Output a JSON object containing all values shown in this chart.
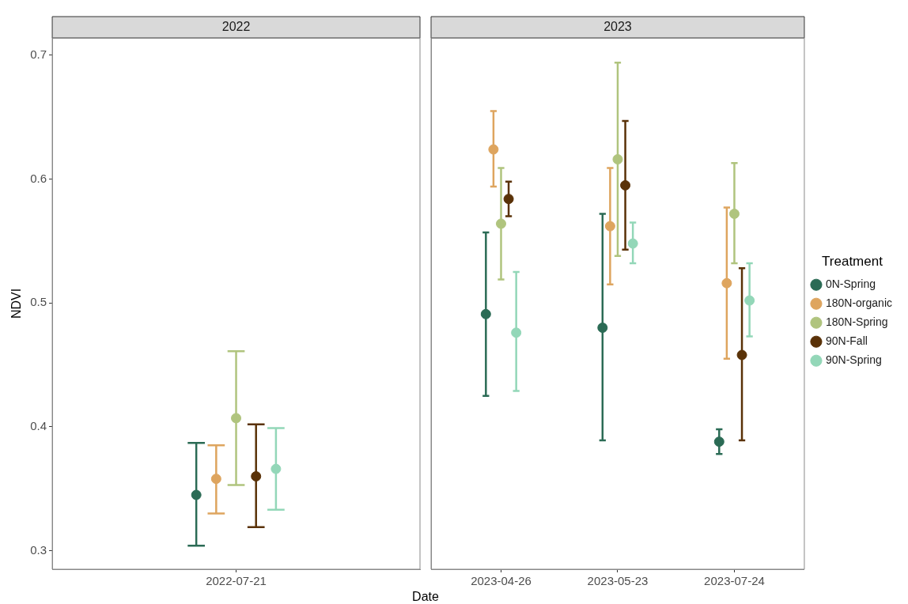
{
  "chart_data": [
    {
      "type": "scatter",
      "title": "2022",
      "ylabel": "NDVI",
      "categories": [
        "2022-07-21"
      ],
      "ylim": [
        0.285,
        0.714
      ],
      "yticks": [
        0.3,
        0.4,
        0.5,
        0.6,
        0.7
      ],
      "marker": "circle",
      "legend": false,
      "series": [
        {
          "color": "#2b6b55",
          "values": [
            0.345
          ],
          "errors": [
            [
              0.304,
              0.387
            ]
          ]
        },
        {
          "color": "#dea55f",
          "values": [
            0.358
          ],
          "errors": [
            [
              0.33,
              0.385
            ]
          ]
        },
        {
          "color": "#b0c47e",
          "values": [
            0.407
          ],
          "errors": [
            [
              0.353,
              0.461
            ]
          ]
        },
        {
          "color": "#5a3208",
          "values": [
            0.36
          ],
          "errors": [
            [
              0.319,
              0.402
            ]
          ]
        },
        {
          "color": "#93d7b8",
          "values": [
            0.366
          ],
          "errors": [
            [
              0.333,
              0.399
            ]
          ]
        }
      ]
    },
    {
      "type": "scatter",
      "title": "2023",
      "xlabel": "Date",
      "legend_title": "Treatment",
      "legend": "right",
      "tick_labels": "x",
      "categories": [
        "2023-04-26",
        "2023-05-23",
        "2023-07-24"
      ],
      "ylim": [
        0.285,
        0.714
      ],
      "yticks": [
        0.3,
        0.4,
        0.5,
        0.6,
        0.7
      ],
      "marker": "circle",
      "series": [
        {
          "name": "0N-Spring",
          "color": "#2b6b55",
          "values": [
            0.491,
            0.48,
            0.388
          ],
          "errors": [
            [
              0.425,
              0.557
            ],
            [
              0.389,
              0.572
            ],
            [
              0.378,
              0.398
            ]
          ]
        },
        {
          "name": "180N-organic",
          "color": "#dea55f",
          "values": [
            0.624,
            0.562,
            0.516
          ],
          "errors": [
            [
              0.594,
              0.655
            ],
            [
              0.515,
              0.609
            ],
            [
              0.455,
              0.577
            ]
          ]
        },
        {
          "name": "180N-Spring",
          "color": "#b0c47e",
          "values": [
            0.564,
            0.616,
            0.572
          ],
          "errors": [
            [
              0.519,
              0.609
            ],
            [
              0.538,
              0.694
            ],
            [
              0.532,
              0.613
            ]
          ]
        },
        {
          "name": "90N-Fall",
          "color": "#5a3208",
          "values": [
            0.584,
            0.595,
            0.458
          ],
          "errors": [
            [
              0.57,
              0.598
            ],
            [
              0.543,
              0.647
            ],
            [
              0.389,
              0.528
            ]
          ]
        },
        {
          "name": "90N-Spring",
          "color": "#93d7b8",
          "values": [
            0.476,
            0.548,
            0.502
          ],
          "errors": [
            [
              0.429,
              0.525
            ],
            [
              0.532,
              0.565
            ],
            [
              0.473,
              0.532
            ]
          ]
        }
      ]
    }
  ]
}
